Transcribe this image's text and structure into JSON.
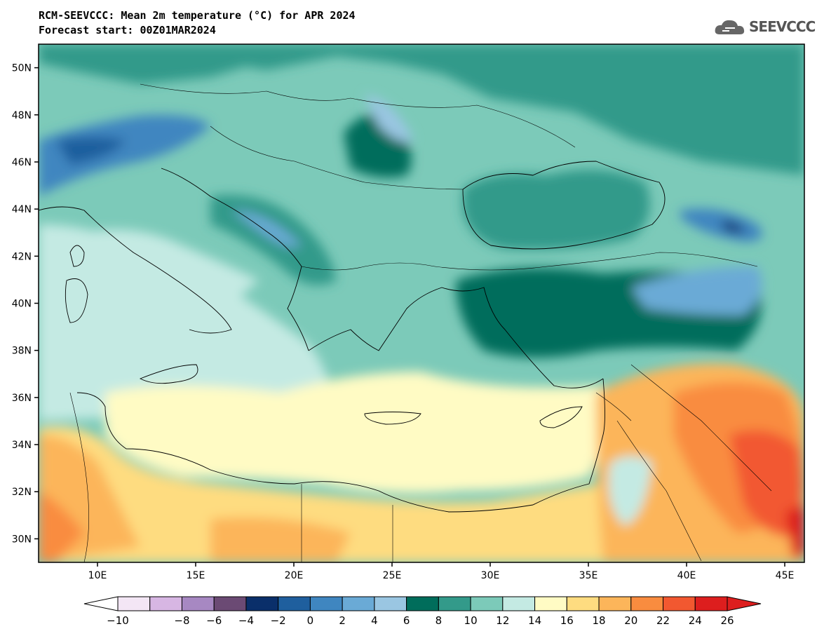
{
  "header": {
    "title": "RCM-SEEVCCC: Mean 2m temperature (°C) for APR 2024",
    "subtitle": "Forecast start: 00Z01MAR2024",
    "logo_text": "SEEVCCC"
  },
  "map": {
    "lon_range": [
      7,
      46
    ],
    "lat_range": [
      29,
      51
    ],
    "lat_ticks": [
      {
        "value": 50,
        "label": "50N"
      },
      {
        "value": 48,
        "label": "48N"
      },
      {
        "value": 46,
        "label": "46N"
      },
      {
        "value": 44,
        "label": "44N"
      },
      {
        "value": 42,
        "label": "42N"
      },
      {
        "value": 40,
        "label": "40N"
      },
      {
        "value": 38,
        "label": "38N"
      },
      {
        "value": 36,
        "label": "36N"
      },
      {
        "value": 34,
        "label": "34N"
      },
      {
        "value": 32,
        "label": "32N"
      },
      {
        "value": 30,
        "label": "30N"
      }
    ],
    "lon_ticks": [
      {
        "value": 10,
        "label": "10E"
      },
      {
        "value": 15,
        "label": "15E"
      },
      {
        "value": 20,
        "label": "20E"
      },
      {
        "value": 25,
        "label": "25E"
      },
      {
        "value": 30,
        "label": "30E"
      },
      {
        "value": 35,
        "label": "35E"
      },
      {
        "value": 40,
        "label": "40E"
      },
      {
        "value": 45,
        "label": "45E"
      }
    ]
  },
  "colorbar": {
    "labels": [
      "−10",
      "−8",
      "−6",
      "−4",
      "−2",
      "0",
      "2",
      "4",
      "6",
      "8",
      "10",
      "12",
      "14",
      "16",
      "18",
      "20",
      "22",
      "24",
      "26"
    ],
    "colors": [
      "#f3e6f5",
      "#d7b6e3",
      "#a788c2",
      "#6b4a74",
      "#0a2f6a",
      "#1f5f9e",
      "#3f86c0",
      "#6aaad6",
      "#9ac6e2",
      "#006d5b",
      "#339a8a",
      "#7ccab9",
      "#c4eae3",
      "#fffbc4",
      "#fedc80",
      "#fcb55a",
      "#f98c3f",
      "#f25830",
      "#dd1e1e"
    ],
    "under_color": "#ffffff",
    "over_color": "#dd1e1e"
  }
}
